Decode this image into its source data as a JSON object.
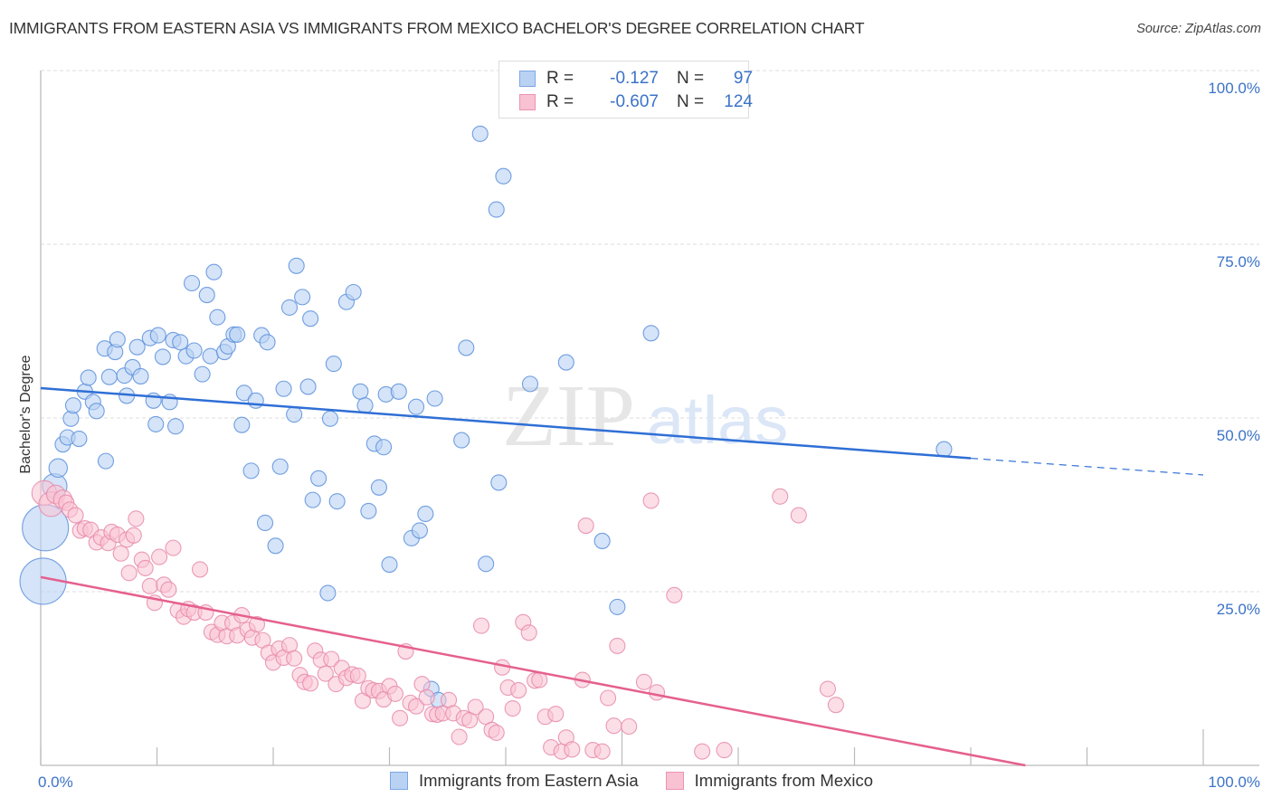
{
  "header": {
    "title": "IMMIGRANTS FROM EASTERN ASIA VS IMMIGRANTS FROM MEXICO BACHELOR'S DEGREE CORRELATION CHART",
    "source": "Source: ZipAtlas.com"
  },
  "watermark": {
    "part1": "ZIP",
    "part2": "atlas"
  },
  "legend_box": {
    "rows": [
      {
        "series": "Immigrants from Eastern Asia",
        "r_label": "R =",
        "r_value": "-0.127",
        "n_label": "N =",
        "n_value": "97"
      },
      {
        "series": "Immigrants from Mexico",
        "r_label": "R =",
        "r_value": "-0.607",
        "n_label": "N =",
        "n_value": "124"
      }
    ]
  },
  "colors": {
    "blue_fill": "#b9d2f4",
    "blue_stroke": "#5b8fdc",
    "blue_line": "#2f6fd6",
    "pink_fill": "#f9c2d3",
    "pink_stroke": "#e68aa9",
    "pink_line": "#e5608d",
    "tick_text": "#3b73c8"
  },
  "chart_data": {
    "type": "scatter",
    "title": "IMMIGRANTS FROM EASTERN ASIA VS IMMIGRANTS FROM MEXICO BACHELOR'S DEGREE CORRELATION CHART",
    "xlabel": "",
    "ylabel": "Bachelor's Degree",
    "xlim": [
      0,
      100
    ],
    "ylim": [
      0,
      100
    ],
    "x_tick_labels": [
      "0.0%",
      "100.0%"
    ],
    "y_ticks": [
      25,
      50,
      75,
      100
    ],
    "y_tick_labels": [
      "25.0%",
      "50.0%",
      "75.0%",
      "100.0%"
    ],
    "x_minor_ticks": [
      0,
      10,
      20,
      30,
      40,
      50,
      60,
      70,
      80,
      90,
      100
    ],
    "grid": "horizontal dashed at y ticks",
    "legend": "bottom-center",
    "series": [
      {
        "name": "Immigrants from Eastern Asia",
        "R": -0.127,
        "N": 97,
        "trend": {
          "x0": 0,
          "y0": 54.3,
          "x1": 80,
          "y1": 44.2,
          "dashed_to_x": 100,
          "dashed_y": 41.8
        },
        "points": [
          [
            0.4,
            34.2,
            3
          ],
          [
            0.2,
            26.5,
            3
          ],
          [
            1.2,
            40.2,
            1.6
          ],
          [
            1.5,
            42.8,
            1.2
          ],
          [
            1.9,
            46.2,
            1
          ],
          [
            2.3,
            47.2,
            1
          ],
          [
            2.6,
            49.9,
            1
          ],
          [
            2.8,
            51.8,
            1
          ],
          [
            3.3,
            47.0,
            1
          ],
          [
            3.8,
            53.8,
            1
          ],
          [
            4.1,
            55.8,
            1
          ],
          [
            4.5,
            52.3,
            1
          ],
          [
            4.8,
            51.0,
            1
          ],
          [
            5.5,
            60.0,
            1
          ],
          [
            5.6,
            43.8,
            1
          ],
          [
            5.9,
            55.9,
            1
          ],
          [
            6.4,
            59.5,
            1
          ],
          [
            6.6,
            61.3,
            1
          ],
          [
            7.2,
            56.1,
            1
          ],
          [
            7.4,
            53.2,
            1
          ],
          [
            7.9,
            57.3,
            1
          ],
          [
            8.3,
            60.2,
            1
          ],
          [
            8.6,
            56.0,
            1
          ],
          [
            9.4,
            61.5,
            1
          ],
          [
            9.7,
            52.5,
            1
          ],
          [
            9.9,
            49.1,
            1
          ],
          [
            10.1,
            61.9,
            1
          ],
          [
            10.5,
            58.8,
            1
          ],
          [
            11.1,
            52.3,
            1
          ],
          [
            11.4,
            61.2,
            1
          ],
          [
            11.6,
            48.8,
            1
          ],
          [
            12.0,
            60.9,
            1
          ],
          [
            12.5,
            58.9,
            1
          ],
          [
            13.0,
            69.4,
            1
          ],
          [
            13.2,
            59.7,
            1
          ],
          [
            13.9,
            56.3,
            1
          ],
          [
            14.3,
            67.7,
            1
          ],
          [
            14.6,
            58.9,
            1
          ],
          [
            14.9,
            71.0,
            1
          ],
          [
            15.2,
            64.5,
            1
          ],
          [
            15.8,
            59.5,
            1
          ],
          [
            16.1,
            60.3,
            1
          ],
          [
            16.6,
            62.0,
            1
          ],
          [
            16.9,
            62.0,
            1
          ],
          [
            17.3,
            49.0,
            1
          ],
          [
            17.5,
            53.6,
            1
          ],
          [
            18.1,
            42.4,
            1
          ],
          [
            18.5,
            52.5,
            1
          ],
          [
            19.0,
            61.9,
            1
          ],
          [
            19.3,
            34.9,
            1
          ],
          [
            19.5,
            60.9,
            1
          ],
          [
            20.2,
            31.6,
            1
          ],
          [
            20.6,
            43.0,
            1
          ],
          [
            20.9,
            54.2,
            1
          ],
          [
            21.4,
            65.9,
            1
          ],
          [
            21.8,
            50.5,
            1
          ],
          [
            22.0,
            71.9,
            1
          ],
          [
            22.5,
            67.4,
            1
          ],
          [
            23.0,
            54.5,
            1
          ],
          [
            23.2,
            64.3,
            1
          ],
          [
            23.4,
            38.2,
            1
          ],
          [
            23.9,
            41.3,
            1
          ],
          [
            24.7,
            24.8,
            1
          ],
          [
            24.9,
            49.9,
            1
          ],
          [
            25.2,
            57.8,
            1
          ],
          [
            25.5,
            38.0,
            1
          ],
          [
            26.3,
            66.7,
            1
          ],
          [
            26.9,
            68.1,
            1
          ],
          [
            27.5,
            53.8,
            1
          ],
          [
            27.9,
            51.8,
            1
          ],
          [
            28.2,
            36.6,
            1
          ],
          [
            28.7,
            46.3,
            1
          ],
          [
            29.1,
            40.0,
            1
          ],
          [
            29.5,
            45.8,
            1
          ],
          [
            29.7,
            53.4,
            1
          ],
          [
            30.0,
            28.9,
            1
          ],
          [
            30.8,
            53.8,
            1
          ],
          [
            31.9,
            32.7,
            1
          ],
          [
            32.3,
            51.6,
            1
          ],
          [
            32.6,
            33.8,
            1
          ],
          [
            33.1,
            36.2,
            1
          ],
          [
            33.6,
            11.0,
            1
          ],
          [
            33.9,
            52.8,
            1
          ],
          [
            34.2,
            9.4,
            1
          ],
          [
            36.2,
            46.8,
            1
          ],
          [
            36.6,
            60.1,
            1
          ],
          [
            37.8,
            90.9,
            1
          ],
          [
            38.3,
            29.0,
            1
          ],
          [
            39.2,
            80.0,
            1
          ],
          [
            39.4,
            40.7,
            1
          ],
          [
            39.8,
            84.8,
            1
          ],
          [
            42.1,
            54.9,
            1
          ],
          [
            45.2,
            58.0,
            1
          ],
          [
            48.3,
            32.3,
            1
          ],
          [
            49.6,
            22.8,
            1
          ],
          [
            52.5,
            62.2,
            1
          ],
          [
            77.7,
            45.5,
            1
          ]
        ]
      },
      {
        "name": "Immigrants from Mexico",
        "R": -0.607,
        "N": 124,
        "trend": {
          "x0": 0,
          "y0": 27.1,
          "x1": 84.7,
          "y1": 0
        },
        "points": [
          [
            0.3,
            39.2,
            1.6
          ],
          [
            0.9,
            37.6,
            1.6
          ],
          [
            1.3,
            39.0,
            1.2
          ],
          [
            1.9,
            38.3,
            1.2
          ],
          [
            2.2,
            37.8,
            1
          ],
          [
            2.5,
            36.8,
            1
          ],
          [
            3.0,
            36.0,
            1
          ],
          [
            3.4,
            33.8,
            1
          ],
          [
            3.8,
            34.1,
            1
          ],
          [
            4.3,
            33.9,
            1
          ],
          [
            4.8,
            32.1,
            1
          ],
          [
            5.2,
            32.8,
            1
          ],
          [
            5.8,
            32.0,
            1
          ],
          [
            6.1,
            33.6,
            1
          ],
          [
            6.6,
            33.2,
            1
          ],
          [
            6.9,
            30.5,
            1
          ],
          [
            7.4,
            32.5,
            1
          ],
          [
            7.6,
            27.7,
            1
          ],
          [
            8.0,
            33.1,
            1
          ],
          [
            8.2,
            35.5,
            1
          ],
          [
            8.7,
            29.6,
            1
          ],
          [
            9.0,
            28.4,
            1
          ],
          [
            9.4,
            25.8,
            1
          ],
          [
            9.8,
            23.4,
            1
          ],
          [
            10.2,
            30.0,
            1
          ],
          [
            10.6,
            26.0,
            1
          ],
          [
            11.0,
            25.3,
            1
          ],
          [
            11.4,
            31.3,
            1
          ],
          [
            11.8,
            22.3,
            1
          ],
          [
            12.3,
            21.4,
            1
          ],
          [
            12.7,
            22.5,
            1
          ],
          [
            13.2,
            22.0,
            1
          ],
          [
            13.7,
            28.2,
            1
          ],
          [
            14.2,
            22.0,
            1
          ],
          [
            14.7,
            19.2,
            1
          ],
          [
            15.2,
            18.8,
            1
          ],
          [
            15.6,
            20.5,
            1
          ],
          [
            16.0,
            18.6,
            1
          ],
          [
            16.5,
            20.5,
            1
          ],
          [
            16.9,
            18.7,
            1
          ],
          [
            17.3,
            21.6,
            1
          ],
          [
            17.8,
            19.5,
            1
          ],
          [
            18.2,
            18.4,
            1
          ],
          [
            18.6,
            20.3,
            1
          ],
          [
            19.1,
            18.0,
            1
          ],
          [
            19.6,
            16.2,
            1
          ],
          [
            20.0,
            14.8,
            1
          ],
          [
            20.5,
            16.8,
            1
          ],
          [
            20.9,
            15.5,
            1
          ],
          [
            21.4,
            17.3,
            1
          ],
          [
            21.8,
            15.4,
            1
          ],
          [
            22.3,
            13.0,
            1
          ],
          [
            22.7,
            12.0,
            1
          ],
          [
            23.2,
            11.8,
            1
          ],
          [
            23.6,
            16.5,
            1
          ],
          [
            24.1,
            15.2,
            1
          ],
          [
            24.5,
            13.2,
            1
          ],
          [
            25.0,
            15.3,
            1
          ],
          [
            25.4,
            11.7,
            1
          ],
          [
            25.9,
            14.0,
            1
          ],
          [
            26.3,
            12.6,
            1
          ],
          [
            26.8,
            13.1,
            1
          ],
          [
            27.3,
            12.9,
            1
          ],
          [
            27.7,
            9.3,
            1
          ],
          [
            28.2,
            11.1,
            1
          ],
          [
            28.6,
            10.8,
            1
          ],
          [
            29.1,
            10.7,
            1
          ],
          [
            29.5,
            9.5,
            1
          ],
          [
            30.0,
            11.4,
            1
          ],
          [
            30.5,
            10.3,
            1
          ],
          [
            30.9,
            6.8,
            1
          ],
          [
            31.4,
            16.4,
            1
          ],
          [
            31.8,
            9.0,
            1
          ],
          [
            32.3,
            8.5,
            1
          ],
          [
            32.8,
            11.7,
            1
          ],
          [
            33.2,
            9.8,
            1
          ],
          [
            33.7,
            7.4,
            1
          ],
          [
            34.1,
            7.3,
            1
          ],
          [
            34.6,
            7.5,
            1
          ],
          [
            35.1,
            9.4,
            1
          ],
          [
            35.5,
            7.5,
            1
          ],
          [
            36.0,
            4.1,
            1
          ],
          [
            36.4,
            6.8,
            1
          ],
          [
            36.9,
            6.5,
            1
          ],
          [
            37.4,
            8.4,
            1
          ],
          [
            37.9,
            20.1,
            1
          ],
          [
            38.3,
            7.0,
            1
          ],
          [
            38.8,
            5.1,
            1
          ],
          [
            39.2,
            4.7,
            1
          ],
          [
            39.7,
            14.1,
            1
          ],
          [
            40.2,
            11.2,
            1
          ],
          [
            40.6,
            8.2,
            1
          ],
          [
            41.1,
            10.8,
            1
          ],
          [
            41.5,
            20.6,
            1
          ],
          [
            42.0,
            19.1,
            1
          ],
          [
            42.5,
            12.2,
            1
          ],
          [
            42.9,
            12.3,
            1
          ],
          [
            43.4,
            7.0,
            1
          ],
          [
            43.9,
            2.6,
            1
          ],
          [
            44.3,
            7.4,
            1
          ],
          [
            44.8,
            2.0,
            1
          ],
          [
            45.2,
            4.0,
            1
          ],
          [
            45.7,
            2.3,
            1
          ],
          [
            46.6,
            12.3,
            1
          ],
          [
            46.9,
            34.5,
            1
          ],
          [
            47.5,
            2.2,
            1
          ],
          [
            48.3,
            2.0,
            1
          ],
          [
            48.8,
            9.7,
            1
          ],
          [
            49.3,
            5.7,
            1
          ],
          [
            49.6,
            17.2,
            1
          ],
          [
            50.6,
            5.6,
            1
          ],
          [
            51.9,
            12.0,
            1
          ],
          [
            52.5,
            38.1,
            1
          ],
          [
            53.0,
            10.5,
            1
          ],
          [
            54.5,
            24.5,
            1
          ],
          [
            56.9,
            2.0,
            1
          ],
          [
            58.8,
            2.2,
            1
          ],
          [
            63.6,
            38.7,
            1
          ],
          [
            65.2,
            36.0,
            1
          ],
          [
            67.7,
            11.0,
            1
          ],
          [
            68.4,
            8.7,
            1
          ]
        ]
      }
    ]
  }
}
